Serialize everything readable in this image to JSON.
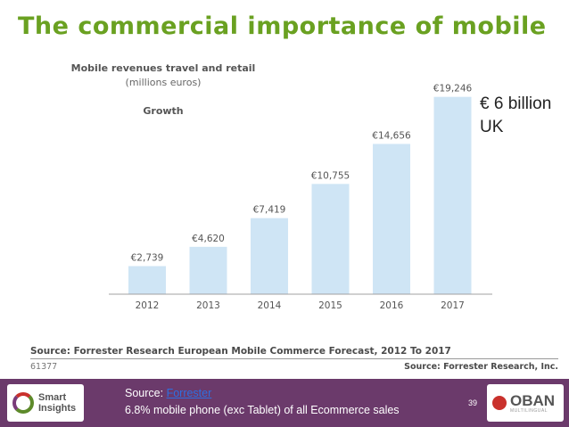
{
  "slide": {
    "title": "The commercial importance of mobile",
    "callout_line1": "€ 6 billion",
    "callout_line2": "UK",
    "footer": {
      "source_prefix": "Source: ",
      "source_link": "Forrester",
      "note": "6.8% mobile phone (exc Tablet) of all Ecommerce sales",
      "page_number": "39",
      "left_logo_line1": "Smart",
      "left_logo_line2": "Insights",
      "right_logo_word": "OBAN",
      "right_logo_sub": "MULTILINGUAL"
    }
  },
  "chart_data": {
    "type": "bar",
    "title": "Mobile revenues travel and retail",
    "subtitle": "(millions euros)",
    "section_label": "Growth",
    "categories": [
      "2012",
      "2013",
      "2014",
      "2015",
      "2016",
      "2017"
    ],
    "values": [
      2739,
      4620,
      7419,
      10755,
      14656,
      19246
    ],
    "value_labels": [
      "€2,739",
      "€4,620",
      "€7,419",
      "€10,755",
      "€14,656",
      "€19,246"
    ],
    "ylim": [
      0,
      20000
    ],
    "bar_color": "#cfe5f5",
    "axis_color": "#a0a0a0",
    "source": "Source: Forrester Research European Mobile Commerce Forecast, 2012 To 2017",
    "id": "61377",
    "credit": "Source: Forrester Research, Inc."
  },
  "colors": {
    "title": "#6aa121",
    "footer_bg": "#6b3a6b",
    "link": "#2e6fe0"
  }
}
